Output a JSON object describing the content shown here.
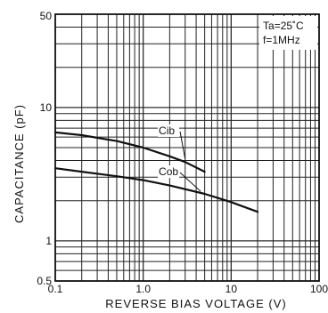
{
  "chart_data": {
    "type": "line",
    "xscale": "log",
    "yscale": "log",
    "xlim": [
      0.1,
      100
    ],
    "ylim": [
      0.5,
      50
    ],
    "xlabel": "REVERSE BIAS VOLTAGE  (V)",
    "ylabel": "CAPACITANCE  (pF)",
    "x_tick_labels": [
      "0.1",
      "1.0",
      "10",
      "100"
    ],
    "x_tick_values": [
      0.1,
      1,
      10,
      100
    ],
    "y_tick_labels": [
      "0.5",
      "1",
      "10",
      "50"
    ],
    "y_tick_values": [
      0.5,
      1,
      10,
      50
    ],
    "grid": true,
    "conditions": [
      "Ta=25˚C",
      "f=1MHz"
    ],
    "series": [
      {
        "name": "Cib",
        "x": [
          0.1,
          0.2,
          0.5,
          1,
          2,
          3,
          5
        ],
        "y": [
          6.5,
          6.2,
          5.6,
          5.0,
          4.3,
          3.9,
          3.3
        ]
      },
      {
        "name": "Cob",
        "x": [
          0.1,
          0.2,
          0.5,
          1,
          2,
          5,
          10,
          20
        ],
        "y": [
          3.5,
          3.3,
          3.05,
          2.85,
          2.6,
          2.25,
          1.95,
          1.65
        ]
      }
    ]
  }
}
